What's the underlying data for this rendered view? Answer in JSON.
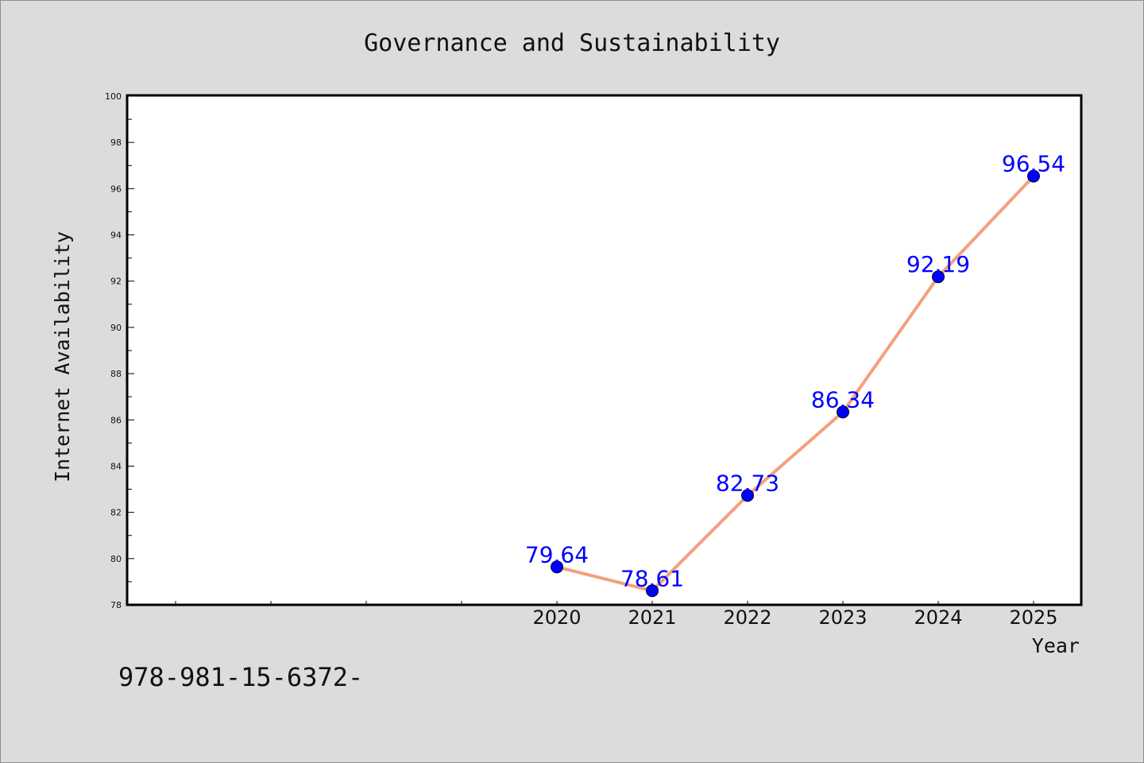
{
  "chart_data": {
    "type": "line",
    "title": "Governance and Sustainability",
    "xlabel": "Year",
    "ylabel": "Internet Availability",
    "categories": [
      "2020",
      "2021",
      "2022",
      "2023",
      "2024",
      "2025"
    ],
    "series": [
      {
        "values": [
          79.64,
          78.61,
          82.73,
          86.34,
          92.19,
          96.54
        ],
        "data_labels": [
          "79.64",
          "78.61",
          "82.73",
          "86.34",
          "92.19",
          "96.54"
        ]
      }
    ],
    "ylim": [
      78,
      100
    ],
    "y_ticks": [
      78,
      80,
      82,
      84,
      86,
      88,
      90,
      92,
      94,
      96,
      98,
      100
    ],
    "x_range": [
      2015.5,
      2025.5
    ],
    "grid": false,
    "legend": "none",
    "colors": {
      "background": "#dcdcdc",
      "plot_area": "#ffffff",
      "line": "#f4a07c",
      "marker": "#0000ff",
      "data_label": "#0000ff",
      "text": "#111111"
    }
  },
  "footnote": "978-981-15-6372-"
}
